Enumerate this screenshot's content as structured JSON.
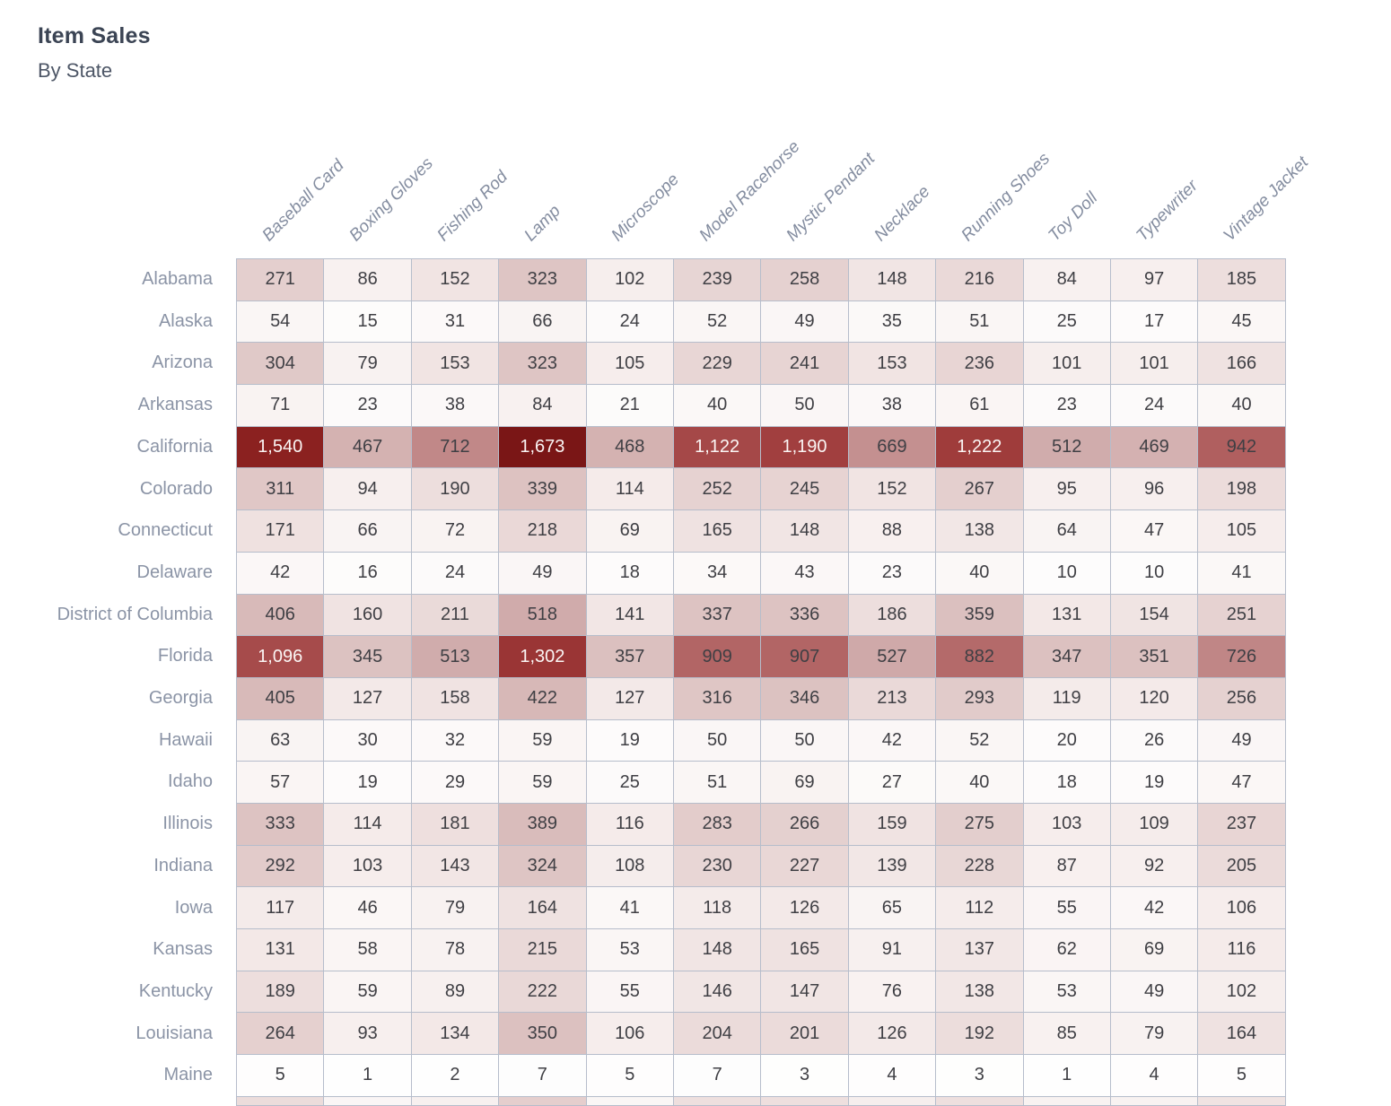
{
  "header": {
    "title": "Item Sales",
    "subtitle": "By State"
  },
  "chart_data": {
    "type": "heatmap",
    "title": "Item Sales",
    "subtitle": "By State",
    "legend_position": "none",
    "columns": [
      "Baseball Card",
      "Boxing Gloves",
      "Fishing Rod",
      "Lamp",
      "Microscope",
      "Model Racehorse",
      "Mystic Pendant",
      "Necklace",
      "Running Shoes",
      "Toy Doll",
      "Typewriter",
      "Vintage Jacket"
    ],
    "rows": [
      "Alabama",
      "Alaska",
      "Arizona",
      "Arkansas",
      "California",
      "Colorado",
      "Connecticut",
      "Delaware",
      "District of Columbia",
      "Florida",
      "Georgia",
      "Hawaii",
      "Idaho",
      "Illinois",
      "Indiana",
      "Iowa",
      "Kansas",
      "Kentucky",
      "Louisiana",
      "Maine"
    ],
    "values": [
      [
        271,
        86,
        152,
        323,
        102,
        239,
        258,
        148,
        216,
        84,
        97,
        185
      ],
      [
        54,
        15,
        31,
        66,
        24,
        52,
        49,
        35,
        51,
        25,
        17,
        45
      ],
      [
        304,
        79,
        153,
        323,
        105,
        229,
        241,
        153,
        236,
        101,
        101,
        166
      ],
      [
        71,
        23,
        38,
        84,
        21,
        40,
        50,
        38,
        61,
        23,
        24,
        40
      ],
      [
        1540,
        467,
        712,
        1673,
        468,
        1122,
        1190,
        669,
        1222,
        512,
        469,
        942
      ],
      [
        311,
        94,
        190,
        339,
        114,
        252,
        245,
        152,
        267,
        95,
        96,
        198
      ],
      [
        171,
        66,
        72,
        218,
        69,
        165,
        148,
        88,
        138,
        64,
        47,
        105
      ],
      [
        42,
        16,
        24,
        49,
        18,
        34,
        43,
        23,
        40,
        10,
        10,
        41
      ],
      [
        406,
        160,
        211,
        518,
        141,
        337,
        336,
        186,
        359,
        131,
        154,
        251
      ],
      [
        1096,
        345,
        513,
        1302,
        357,
        909,
        907,
        527,
        882,
        347,
        351,
        726
      ],
      [
        405,
        127,
        158,
        422,
        127,
        316,
        346,
        213,
        293,
        119,
        120,
        256
      ],
      [
        63,
        30,
        32,
        59,
        19,
        50,
        50,
        42,
        52,
        20,
        26,
        49
      ],
      [
        57,
        19,
        29,
        59,
        25,
        51,
        69,
        27,
        40,
        18,
        19,
        47
      ],
      [
        333,
        114,
        181,
        389,
        116,
        283,
        266,
        159,
        275,
        103,
        109,
        237
      ],
      [
        292,
        103,
        143,
        324,
        108,
        230,
        227,
        139,
        228,
        87,
        92,
        205
      ],
      [
        117,
        46,
        79,
        164,
        41,
        118,
        126,
        65,
        112,
        55,
        42,
        106
      ],
      [
        131,
        58,
        78,
        215,
        53,
        148,
        165,
        91,
        137,
        62,
        69,
        116
      ],
      [
        189,
        59,
        89,
        222,
        55,
        146,
        147,
        76,
        138,
        53,
        49,
        102
      ],
      [
        264,
        93,
        134,
        350,
        106,
        204,
        201,
        126,
        192,
        85,
        79,
        164
      ],
      [
        5,
        1,
        2,
        7,
        5,
        7,
        3,
        4,
        3,
        1,
        4,
        5
      ]
    ],
    "value_range": [
      0,
      1673
    ],
    "number_format": "thousands-comma",
    "color_scale": {
      "stops": [
        [
          0.0,
          "#fefefe"
        ],
        [
          0.05,
          "#f8f1f0"
        ],
        [
          0.2,
          "#ddc3c2"
        ],
        [
          0.31,
          "#d0abab"
        ],
        [
          0.56,
          "#b06060"
        ],
        [
          0.72,
          "#a03d3d"
        ],
        [
          0.92,
          "#8b2120"
        ],
        [
          1.0,
          "#7a1616"
        ]
      ],
      "light_text_threshold": 0.6,
      "text_dark": "#3f3f44",
      "text_light": "#fbf6f5",
      "grid_line": "#b6bdcb"
    },
    "partial_next_row_colors": [
      "#ecdcdb",
      "#faf5f5",
      "#f7f0ef",
      "#e5cecd",
      "#faf6f5",
      "#eedfde",
      "#eedfde",
      "#f6eeed",
      "#eedfde",
      "#f8f2f1",
      "#f8f2f1",
      "#f0e3e2"
    ]
  }
}
